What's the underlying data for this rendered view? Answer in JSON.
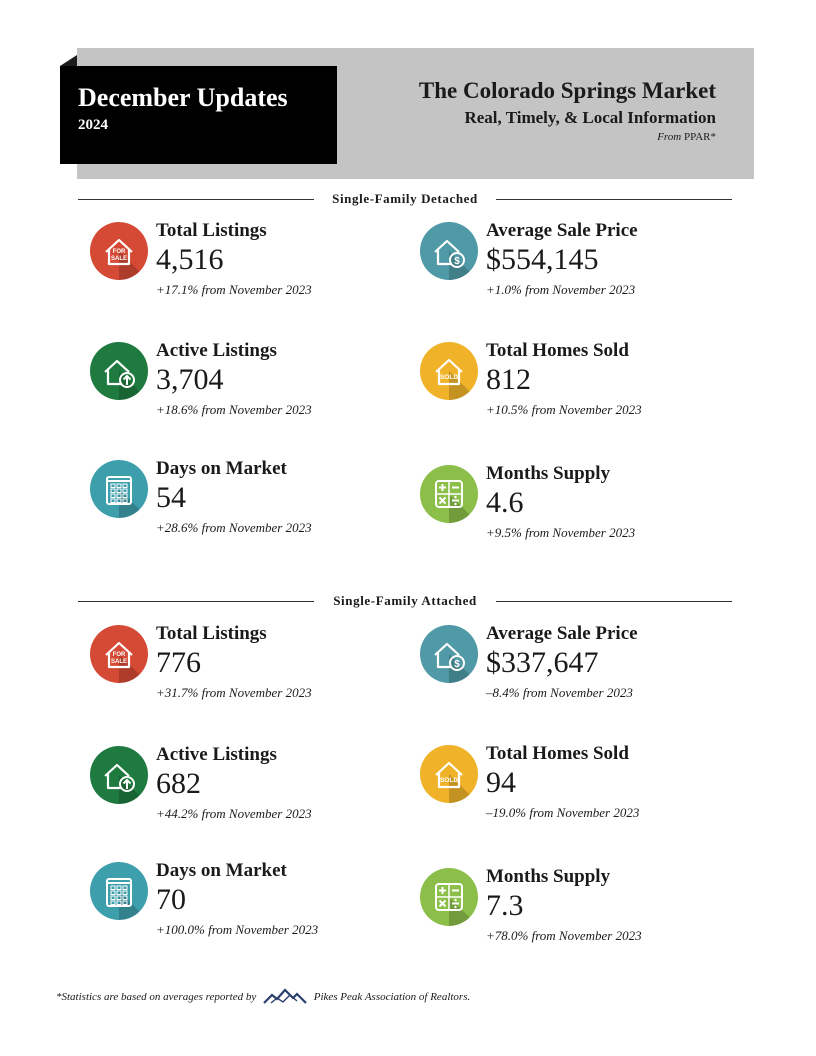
{
  "header": {
    "month_title": "December Updates",
    "year": "2024",
    "market_title": "The Colorado Springs Market",
    "subtitle": "Real, Timely, & Local Information",
    "source_prefix": "From",
    "source": "PPAR*"
  },
  "sections": [
    {
      "title": "Single-Family Detached",
      "stats": [
        {
          "label": "Total Listings",
          "value": "4,516",
          "change": "+17.1% from November 2023",
          "icon": "for-sale-house-icon",
          "color": "#d54a35"
        },
        {
          "label": "Average Sale Price",
          "value": "$554,145",
          "change": "+1.0% from November 2023",
          "icon": "house-dollar-icon",
          "color": "#4f9aa6"
        },
        {
          "label": "Active Listings",
          "value": "3,704",
          "change": "+18.6% from November 2023",
          "icon": "house-arrow-up-icon",
          "color": "#1e7a3e"
        },
        {
          "label": "Total Homes Sold",
          "value": "812",
          "change": "+10.5% from November 2023",
          "icon": "sold-house-icon",
          "color": "#f0b229"
        },
        {
          "label": "Days on Market",
          "value": "54",
          "change": "+28.6% from November 2023",
          "icon": "calendar-icon",
          "color": "#3d9eac"
        },
        {
          "label": "Months Supply",
          "value": "4.6",
          "change": "+9.5% from November 2023",
          "icon": "calculator-icon",
          "color": "#8cbf4a"
        }
      ]
    },
    {
      "title": "Single-Family Attached",
      "stats": [
        {
          "label": "Total Listings",
          "value": "776",
          "change": "+31.7% from November 2023",
          "icon": "for-sale-house-icon",
          "color": "#d54a35"
        },
        {
          "label": "Average Sale Price",
          "value": "$337,647",
          "change": "–8.4% from November 2023",
          "icon": "house-dollar-icon",
          "color": "#4f9aa6"
        },
        {
          "label": "Active Listings",
          "value": "682",
          "change": "+44.2% from November 2023",
          "icon": "house-arrow-up-icon",
          "color": "#1e7a3e"
        },
        {
          "label": "Total Homes Sold",
          "value": "94",
          "change": "–19.0% from November 2023",
          "icon": "sold-house-icon",
          "color": "#f0b229"
        },
        {
          "label": "Days on Market",
          "value": "70",
          "change": "+100.0% from November 2023",
          "icon": "calendar-icon",
          "color": "#3d9eac"
        },
        {
          "label": "Months Supply",
          "value": "7.3",
          "change": "+78.0% from November 2023",
          "icon": "calculator-icon",
          "color": "#8cbf4a"
        }
      ]
    }
  ],
  "icon_text": {
    "for_sale_top": "FOR",
    "for_sale_bottom": "SALE",
    "sold": "SOLD"
  },
  "footer": {
    "note": "*Statistics are based on averages reported by",
    "org": "Pikes Peak Association of Realtors."
  }
}
